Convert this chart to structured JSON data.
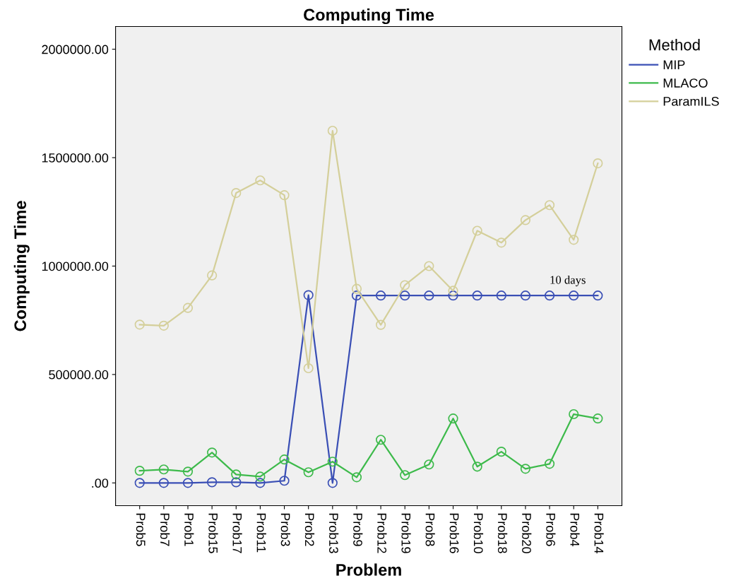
{
  "chart_data": {
    "type": "line",
    "title": "Computing Time",
    "xlabel": "Problem",
    "ylabel": "Computing Time",
    "legend_title": "Method",
    "categories": [
      "Prob5",
      "Prob7",
      "Prob1",
      "Prob15",
      "Prob17",
      "Prob11",
      "Prob3",
      "Prob2",
      "Prob13",
      "Prob9",
      "Prob12",
      "Prob19",
      "Prob8",
      "Prob16",
      "Prob10",
      "Prob18",
      "Prob20",
      "Prob6",
      "Prob4",
      "Prob14"
    ],
    "series": [
      {
        "name": "MIP",
        "color": "#3a4fb5",
        "values": [
          0,
          0,
          0,
          3000,
          3000,
          0,
          10000,
          866000,
          0,
          864000,
          864000,
          864000,
          864000,
          864000,
          864000,
          864000,
          864000,
          864000,
          864000,
          864000
        ]
      },
      {
        "name": "MLACO",
        "color": "#3dba4b",
        "values": [
          56000,
          62000,
          52000,
          140000,
          39000,
          29000,
          108000,
          49000,
          98000,
          26000,
          199000,
          36000,
          85000,
          297000,
          75000,
          144000,
          65000,
          88000,
          317000,
          297000
        ]
      },
      {
        "name": "ParamILS",
        "color": "#d4cf9a",
        "values": [
          730000,
          725000,
          807000,
          957000,
          1337000,
          1395000,
          1327000,
          529000,
          1624000,
          895000,
          729000,
          912000,
          1000000,
          886000,
          1163000,
          1108000,
          1212000,
          1281000,
          1121000,
          1474000
        ]
      }
    ],
    "ylim": [
      -105000,
      2105000
    ],
    "yticks": [
      {
        "value": 0,
        "label": ".00"
      },
      {
        "value": 500000,
        "label": "500000.00"
      },
      {
        "value": 1000000,
        "label": "1000000.00"
      },
      {
        "value": 1500000,
        "label": "1500000.00"
      },
      {
        "value": 2000000,
        "label": "2000000.00"
      }
    ],
    "annotations": [
      {
        "text": "10 days",
        "x": "Prob6",
        "y": 864000
      }
    ],
    "grid": false,
    "legend": "top right",
    "marker": "circle",
    "line_style": "solid"
  }
}
